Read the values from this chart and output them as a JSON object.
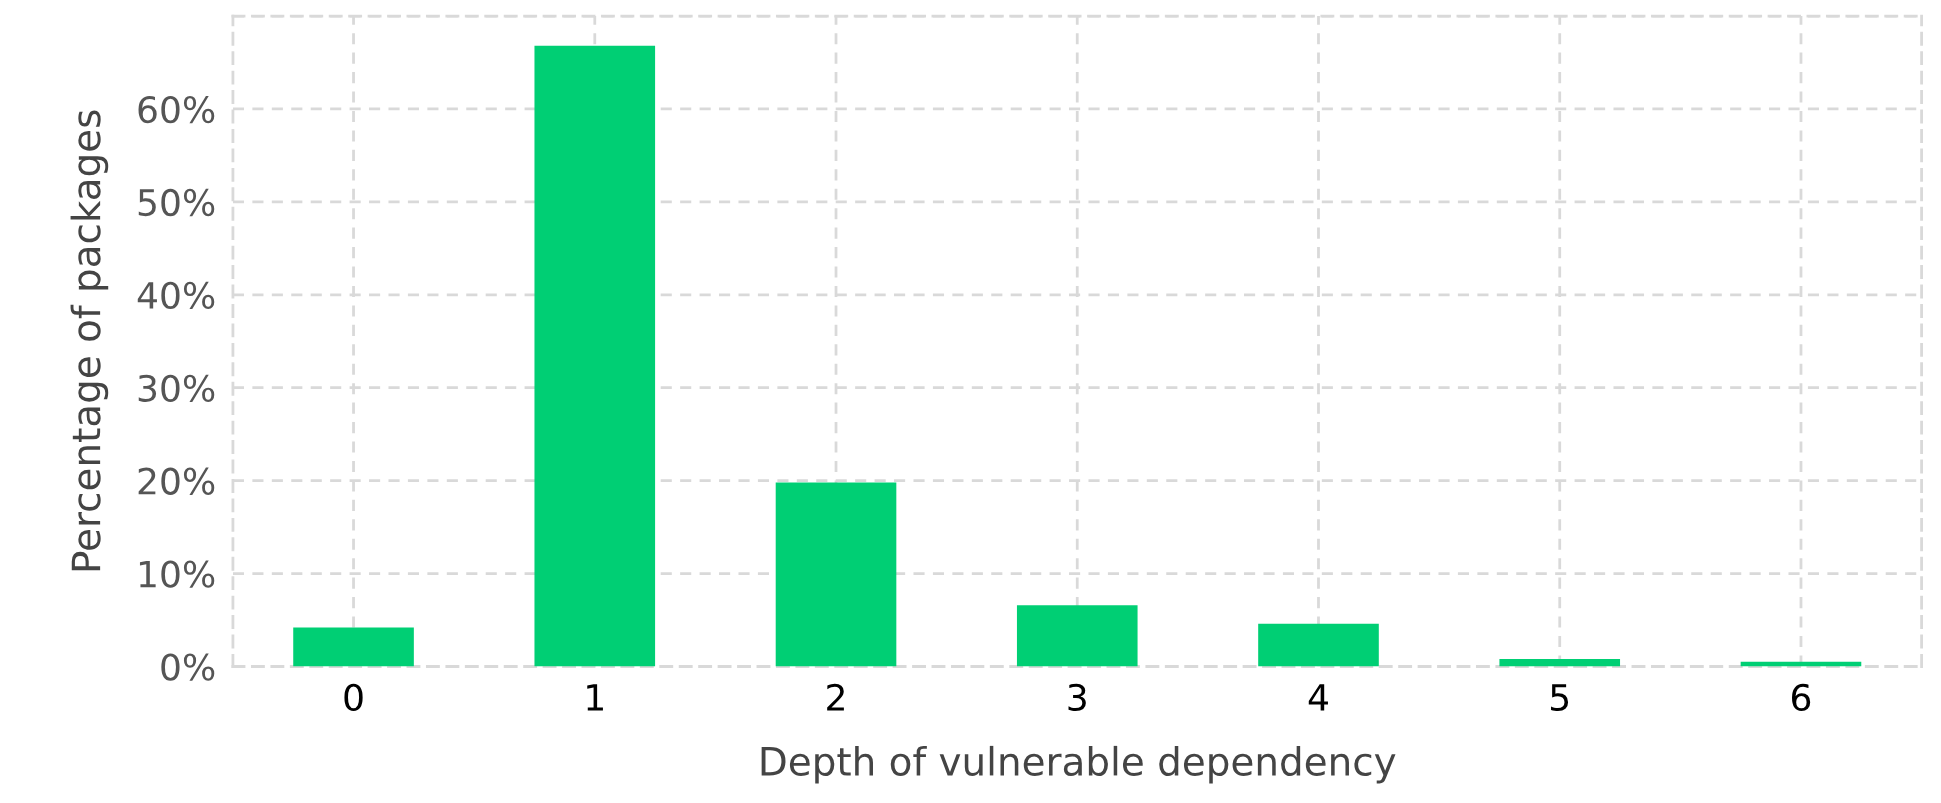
{
  "chart_data": {
    "type": "bar",
    "xlabel": "Depth of vulnerable dependency",
    "ylabel": "Percentage of packages",
    "categories": [
      "0",
      "1",
      "2",
      "3",
      "4",
      "5",
      "6"
    ],
    "values": [
      4.2,
      66.8,
      19.8,
      6.6,
      4.6,
      0.8,
      0.5
    ],
    "color": "#00cf74",
    "ylim": [
      0,
      70
    ],
    "yticks": [
      {
        "value": 0,
        "label": "0%"
      },
      {
        "value": 10,
        "label": "10%"
      },
      {
        "value": 20,
        "label": "20%"
      },
      {
        "value": 30,
        "label": "30%"
      },
      {
        "value": 40,
        "label": "40%"
      },
      {
        "value": 50,
        "label": "50%"
      },
      {
        "value": 60,
        "label": "60%"
      },
      {
        "value": 70,
        "label": null
      }
    ],
    "grid": true
  }
}
